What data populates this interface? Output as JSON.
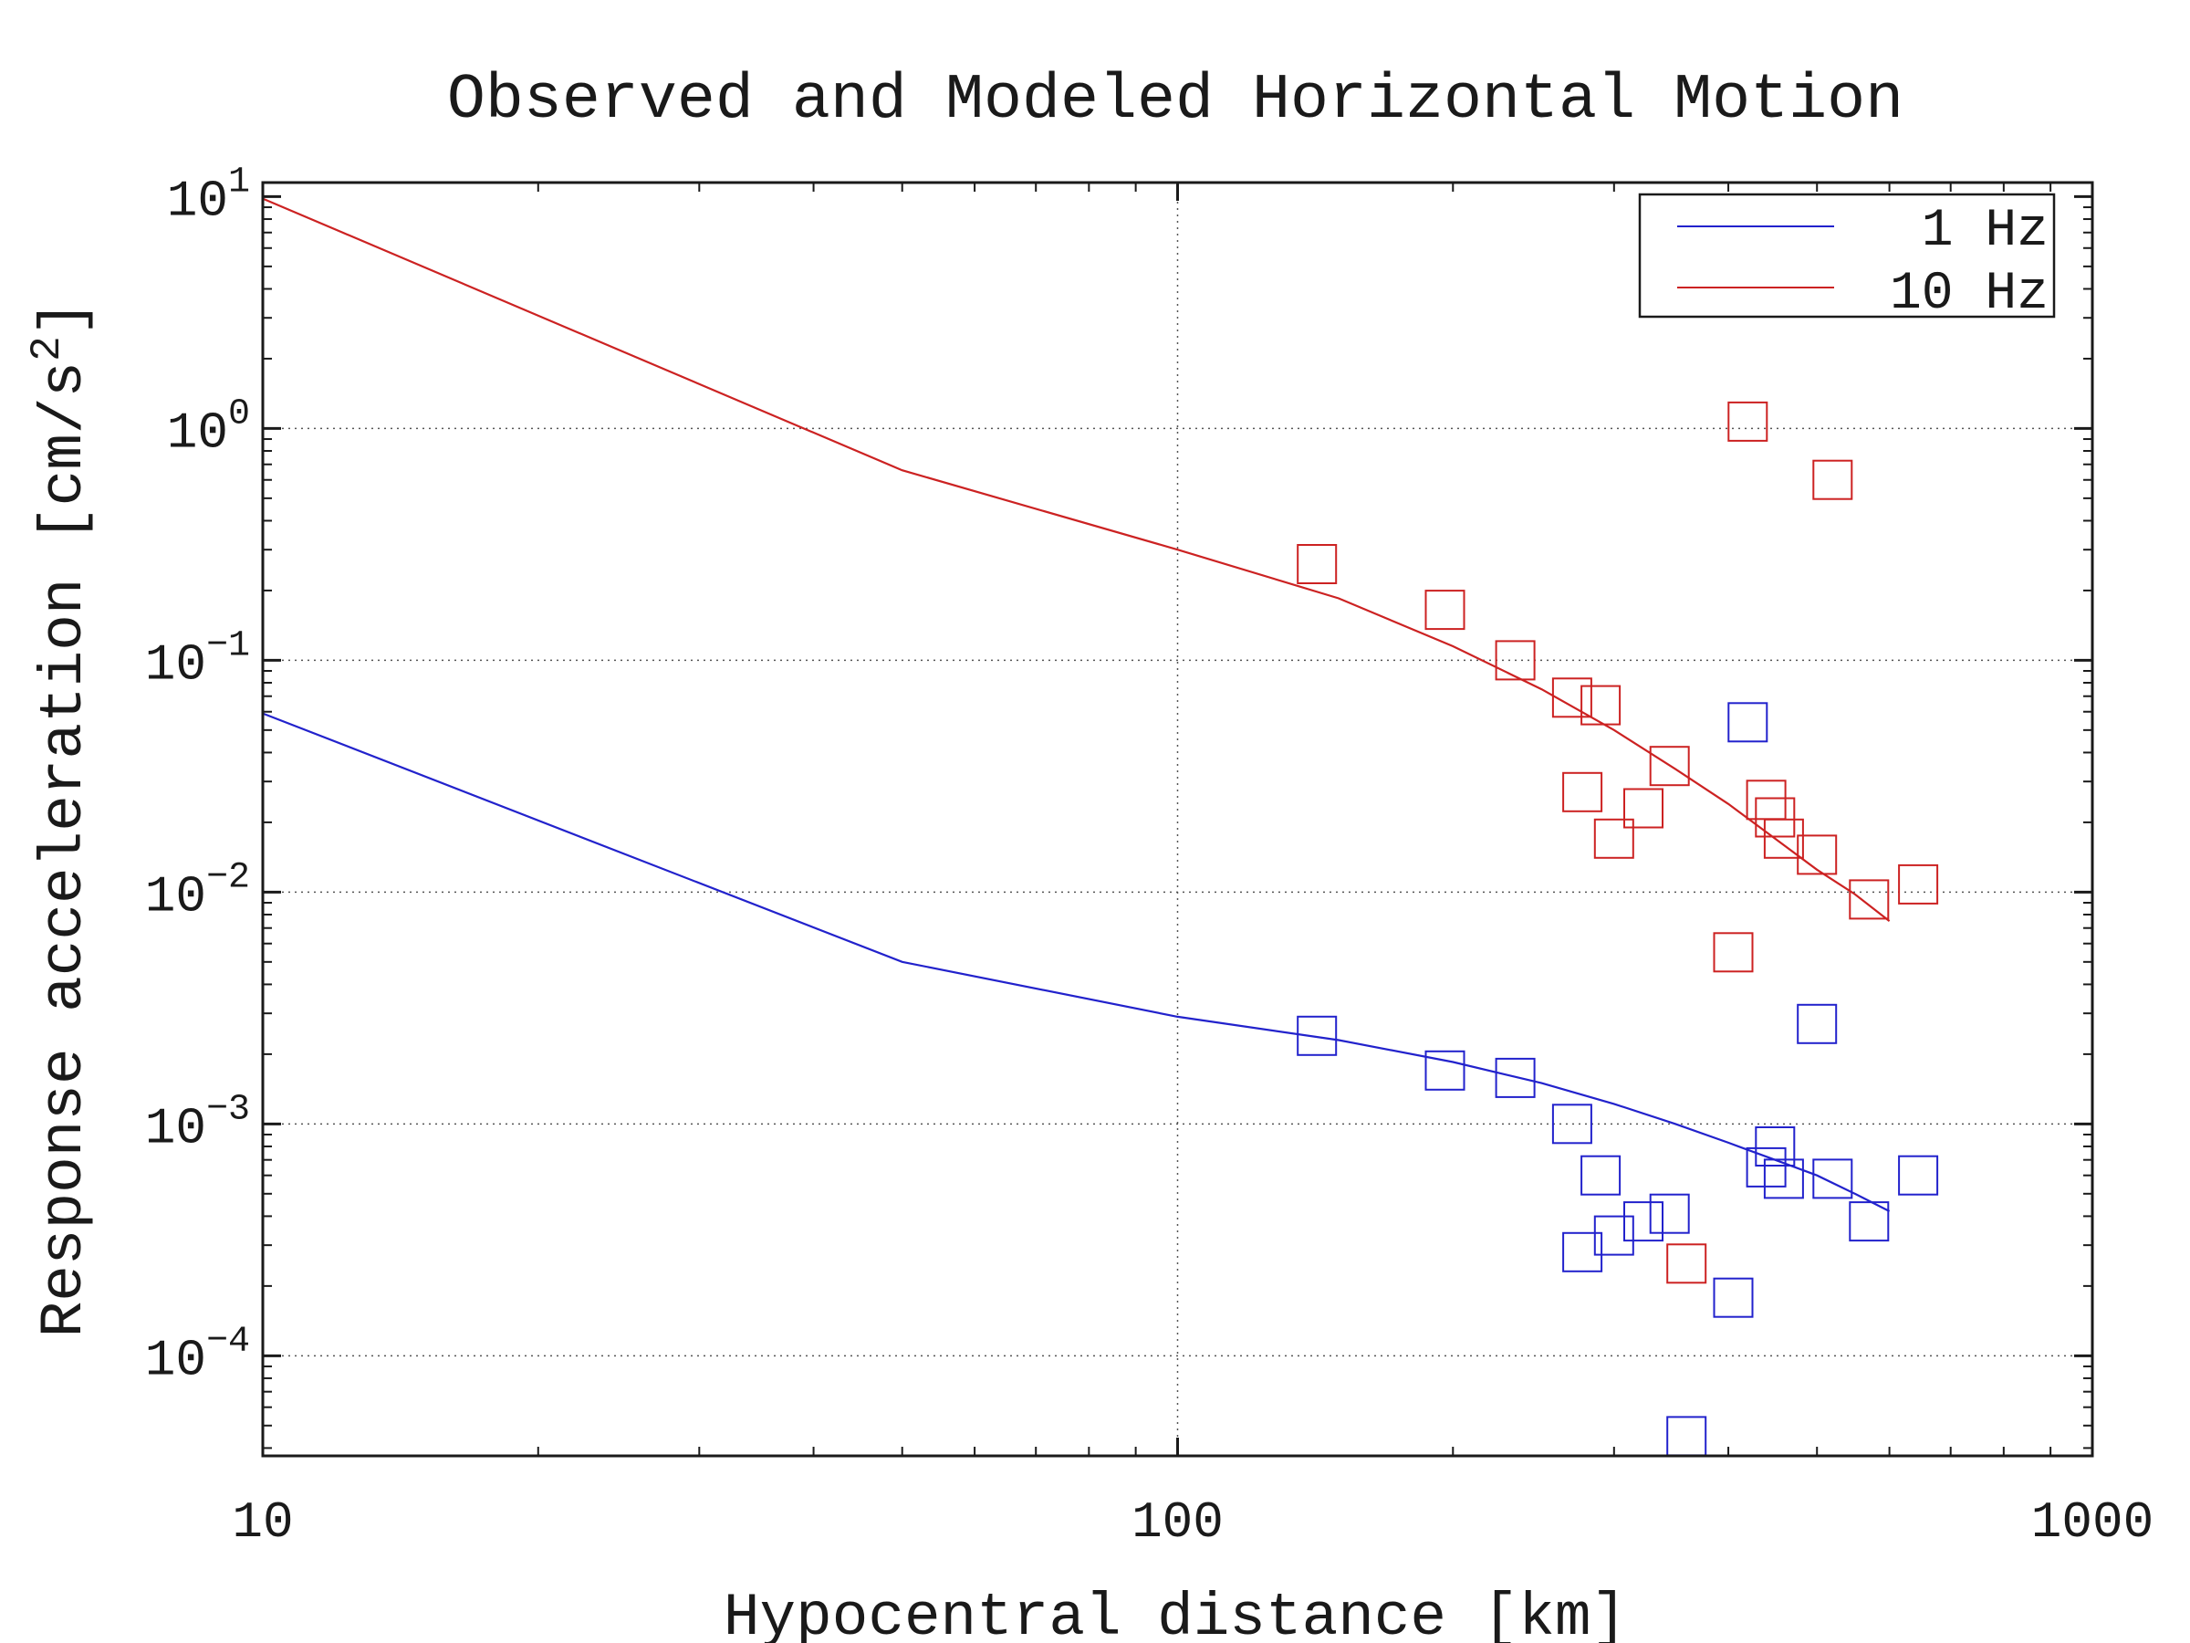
{
  "chart_data": {
    "type": "scatter",
    "title": "Observed and Modeled Horizontal Motion",
    "xlabel": "Hypocentral distance [km]",
    "ylabel": "Response acceleration [cm/s²]",
    "ylabel_parts": {
      "before": "Response acceleration [cm/s",
      "sup": "2",
      "after": "]"
    },
    "x_scale": "log",
    "y_scale": "log",
    "xlim": [
      10,
      1000
    ],
    "ylim": [
      3.7e-05,
      11.5
    ],
    "grid": true,
    "legend_position": "top-right",
    "x_ticks": [
      {
        "value": 10,
        "label": "10"
      },
      {
        "value": 100,
        "label": "100"
      },
      {
        "value": 1000,
        "label": "1000"
      }
    ],
    "y_ticks": [
      {
        "value": 10,
        "base": "10",
        "exp": "1"
      },
      {
        "value": 1,
        "base": "10",
        "exp": "0"
      },
      {
        "value": 0.1,
        "base": "10",
        "exp": "−1"
      },
      {
        "value": 0.01,
        "base": "10",
        "exp": "−2"
      },
      {
        "value": 0.001,
        "base": "10",
        "exp": "−3"
      },
      {
        "value": 0.0001,
        "base": "10",
        "exp": "−4"
      }
    ],
    "series": [
      {
        "name": "1 Hz",
        "color": "#2222cc",
        "model_line": {
          "x": [
            10,
            50,
            100,
            150,
            200,
            250,
            300,
            350,
            400,
            450,
            500,
            550,
            600
          ],
          "y": [
            0.059,
            0.005,
            0.0029,
            0.0023,
            0.00185,
            0.0015,
            0.00122,
            0.001,
            0.00083,
            0.0007,
            0.0006,
            0.0005,
            0.00042
          ]
        },
        "observed": {
          "x": [
            142,
            196,
            234,
            270,
            277,
            290,
            300,
            323,
            345,
            360,
            405,
            420,
            440,
            450,
            460,
            500,
            520,
            570,
            645
          ],
          "y": [
            0.0024,
            0.0017,
            0.00158,
            0.001,
            0.00028,
            0.0006,
            0.00033,
            0.00038,
            0.00041,
            4.5e-05,
            0.000178,
            0.054,
            0.00065,
            0.0008,
            0.00058,
            0.0027,
            0.00058,
            0.00038,
            0.0006
          ]
        }
      },
      {
        "name": "10 Hz",
        "color": "#cc2222",
        "model_line": {
          "x": [
            10,
            50,
            100,
            150,
            200,
            250,
            300,
            350,
            400,
            450,
            500,
            550,
            600
          ],
          "y": [
            9.8,
            0.66,
            0.3,
            0.185,
            0.115,
            0.075,
            0.05,
            0.034,
            0.024,
            0.017,
            0.0125,
            0.0098,
            0.0075
          ]
        },
        "observed": {
          "x": [
            142,
            196,
            234,
            270,
            277,
            290,
            300,
            323,
            345,
            360,
            405,
            420,
            440,
            450,
            460,
            500,
            520,
            570,
            645
          ],
          "y": [
            0.26,
            0.165,
            0.1,
            0.069,
            0.027,
            0.064,
            0.017,
            0.023,
            0.035,
            0.00025,
            0.0055,
            1.07,
            0.025,
            0.021,
            0.017,
            0.0145,
            0.6,
            0.0093,
            0.0108
          ]
        }
      }
    ]
  }
}
